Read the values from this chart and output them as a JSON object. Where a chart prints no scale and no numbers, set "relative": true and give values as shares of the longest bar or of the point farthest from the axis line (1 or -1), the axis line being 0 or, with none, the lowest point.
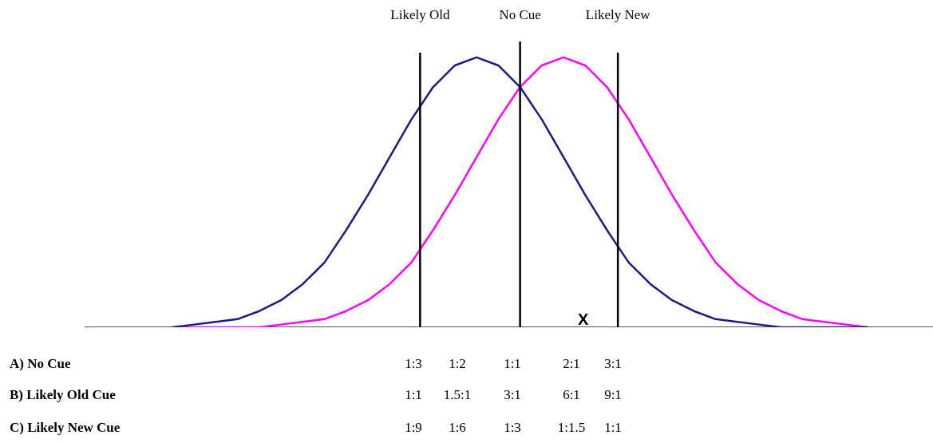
{
  "chart_data": {
    "type": "line",
    "relative": true,
    "legend": false,
    "grid": false,
    "marker": "none",
    "categories": [
      null,
      null,
      null,
      null,
      null,
      null,
      null,
      null,
      null,
      null,
      null,
      null,
      null,
      null,
      null,
      null,
      null,
      null,
      null,
      null,
      null,
      null,
      null,
      null,
      null,
      null,
      null,
      null,
      null,
      null,
      null,
      null,
      null,
      null,
      null,
      null,
      null,
      null,
      null,
      null
    ],
    "series": [
      {
        "color": "#1c1c80",
        "values": [
          null,
          null,
          null,
          null,
          0,
          0.01,
          0.02,
          0.03,
          0.06,
          0.1,
          0.16,
          0.24,
          0.36,
          0.49,
          0.63,
          0.77,
          0.89,
          0.97,
          1,
          0.97,
          0.89,
          0.77,
          0.63,
          0.49,
          0.36,
          0.24,
          0.16,
          0.1,
          0.06,
          0.03,
          0.02,
          0.01,
          0,
          0,
          0,
          0,
          0,
          null,
          null,
          null
        ]
      },
      {
        "color": "#ff00ff",
        "values": [
          null,
          null,
          null,
          null,
          0,
          0,
          0,
          0,
          0,
          0.01,
          0.02,
          0.03,
          0.06,
          0.1,
          0.16,
          0.24,
          0.36,
          0.49,
          0.63,
          0.77,
          0.89,
          0.97,
          1,
          0.97,
          0.89,
          0.77,
          0.63,
          0.49,
          0.36,
          0.24,
          0.16,
          0.1,
          0.06,
          0.03,
          0.02,
          0.01,
          0,
          null,
          null,
          null
        ]
      }
    ],
    "annotations": [
      "Likely Old",
      "No Cue",
      "Likely New",
      "X",
      "A)  No Cue",
      "1:3",
      "1:2",
      "1:1",
      "2:1",
      "3:1",
      "B) Likely Old Cue",
      "1:1",
      "1.5:1",
      "3:1",
      "6:1",
      "9:1",
      "C) Likely New Cue",
      "1:9",
      "1:6",
      "1:3",
      "1:1.5",
      "1:1"
    ]
  }
}
